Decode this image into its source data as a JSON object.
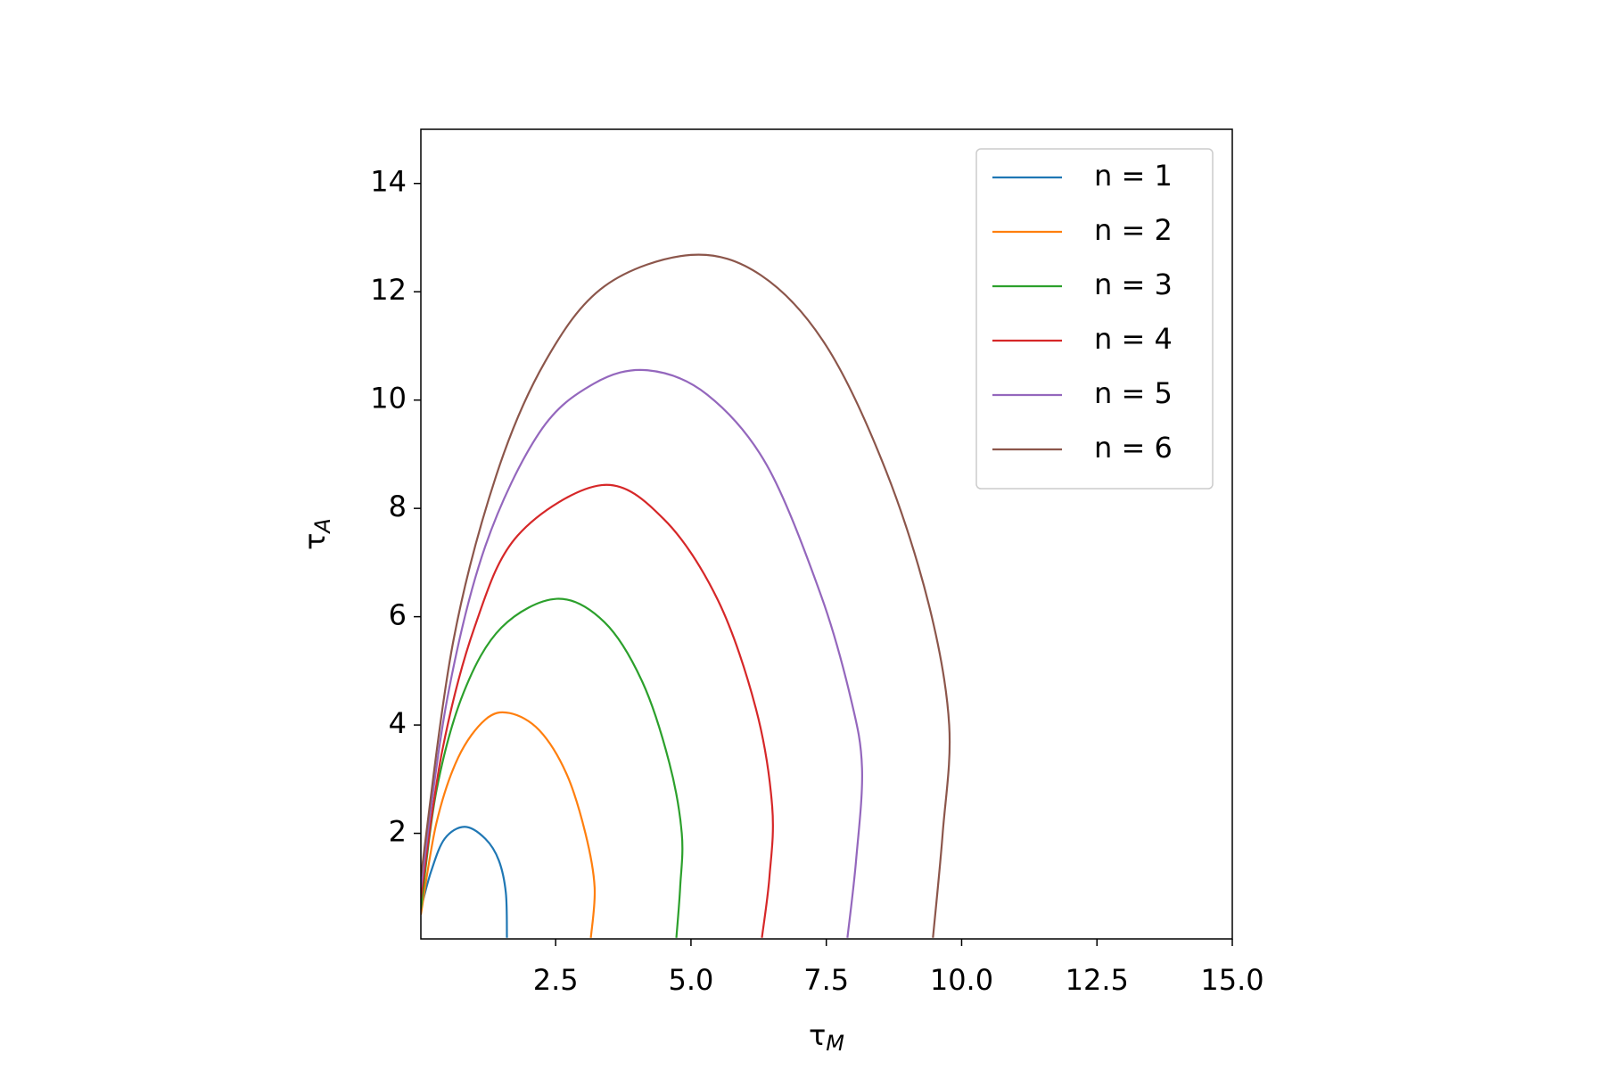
{
  "chart_data": {
    "type": "line",
    "xlabel": "τ",
    "xlabel_sub": "M",
    "ylabel": "τ",
    "ylabel_sub": "A",
    "xlim": [
      0.01,
      15
    ],
    "ylim": [
      0.05,
      15
    ],
    "xticks": [
      2.5,
      {
        "value": 5,
        "label": "5.0"
      },
      7.5,
      {
        "value": 10,
        "label": "10.0"
      },
      12.5,
      {
        "value": 15,
        "label": "15.0"
      }
    ],
    "yticks": [
      2,
      4,
      6,
      8,
      10,
      12,
      14
    ],
    "legend": "upper right",
    "series": [
      {
        "name": "n = 1",
        "color": "#1f77b4",
        "x": [
          0.01,
          0.2,
          0.45,
          0.82,
          1.2,
          1.45,
          1.58,
          1.6
        ],
        "values": [
          0.6,
          1.3,
          1.9,
          2.12,
          1.9,
          1.5,
          0.9,
          0.07
        ]
      },
      {
        "name": "n = 2",
        "color": "#ff7f0e",
        "x": [
          0.01,
          0.3,
          0.7,
          1.2,
          1.65,
          2.2,
          2.7,
          3.05,
          3.22,
          3.15
        ],
        "values": [
          0.5,
          2.2,
          3.4,
          4.1,
          4.22,
          3.9,
          3.1,
          2.0,
          1.0,
          0.07
        ]
      },
      {
        "name": "n = 3",
        "color": "#2ca02c",
        "x": [
          0.01,
          0.3,
          0.8,
          1.5,
          2.52,
          3.4,
          4.1,
          4.6,
          4.83,
          4.8,
          4.73
        ],
        "values": [
          0.6,
          2.8,
          4.6,
          5.8,
          6.33,
          5.9,
          4.8,
          3.3,
          2.0,
          1.0,
          0.07
        ]
      },
      {
        "name": "n = 4",
        "color": "#d62728",
        "x": [
          0.01,
          0.4,
          1.0,
          1.8,
          3.35,
          4.5,
          5.5,
          6.2,
          6.5,
          6.45,
          6.31
        ],
        "values": [
          0.8,
          3.5,
          5.8,
          7.5,
          8.43,
          7.8,
          6.3,
          4.3,
          2.5,
          1.2,
          0.07
        ]
      },
      {
        "name": "n = 5",
        "color": "#9467bd",
        "x": [
          0.01,
          0.5,
          1.2,
          2.2,
          3.2,
          4.2,
          5.3,
          6.4,
          7.4,
          7.95,
          8.16,
          8.05,
          7.89
        ],
        "values": [
          1.0,
          4.5,
          7.3,
          9.4,
          10.3,
          10.55,
          10.1,
          8.8,
          6.4,
          4.5,
          3.2,
          1.5,
          0.07
        ]
      },
      {
        "name": "n = 6",
        "color": "#8c564b",
        "x": [
          0.01,
          0.6,
          1.4,
          2.3,
          3.4,
          5.0,
          6.3,
          7.5,
          8.6,
          9.4,
          9.77,
          9.65,
          9.47
        ],
        "values": [
          1.2,
          5.5,
          8.6,
          10.7,
          12.1,
          12.68,
          12.3,
          11.0,
          8.7,
          6.2,
          4.0,
          2.0,
          0.07
        ]
      }
    ]
  }
}
